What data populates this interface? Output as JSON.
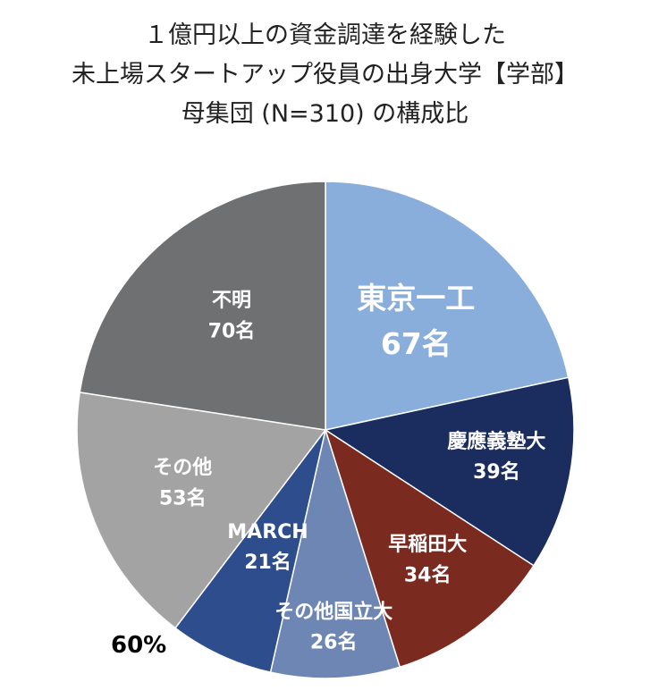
{
  "title_lines": [
    "１億円以上の資金調達を経験した",
    "未上場スタートアップ役員の出身大学【学部】",
    "母集団 (N=310) の構成比"
  ],
  "chart_data": {
    "type": "pie",
    "title": "１億円以上の資金調達を経験した 未上場スタートアップ役員の出身大学【学部】 母集団 (N=310) の構成比",
    "total": 310,
    "unit": "名",
    "start_angle_deg": 0,
    "direction": "clockwise",
    "legend": "none",
    "slices": [
      {
        "label": "東京一工",
        "value": 67,
        "value_label": "67名",
        "color": "#8aaedb"
      },
      {
        "label": "慶應義塾大",
        "value": 39,
        "value_label": "39名",
        "color": "#1b2c5e"
      },
      {
        "label": "早稲田大",
        "value": 34,
        "value_label": "34名",
        "color": "#7a2a1e"
      },
      {
        "label": "その他国立大",
        "value": 26,
        "value_label": "26名",
        "color": "#6d86b3"
      },
      {
        "label": "MARCH",
        "value": 21,
        "value_label": "21名",
        "color": "#2e4d8c"
      },
      {
        "label": "その他",
        "value": 53,
        "value_label": "53名",
        "color": "#a3a3a3"
      },
      {
        "label": "不明",
        "value": 70,
        "value_label": "70名",
        "color": "#6e7071"
      }
    ],
    "annotation": "60%"
  }
}
